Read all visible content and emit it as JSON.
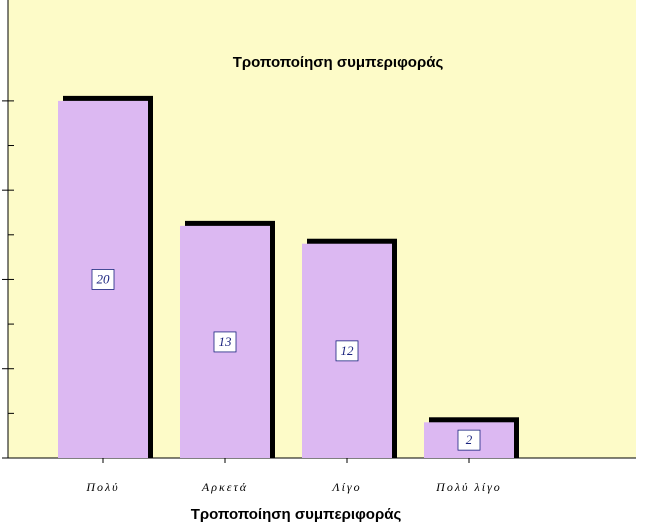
{
  "chart_data": {
    "type": "bar",
    "title": "Τροποποίηση συμπεριφοράς",
    "x_label": "Τροποποίηση συμπεριφοράς",
    "categories": [
      "Πολύ",
      "Αρκετά",
      "Λίγο",
      "Πολύ λίγο"
    ],
    "values": [
      20,
      13,
      12,
      2
    ],
    "color": "#dcb8f2",
    "ylim": [
      0,
      25.65
    ],
    "yticks": [
      0,
      2.5,
      5,
      7.5,
      10,
      12.5,
      15,
      17.5,
      20
    ],
    "grid": false
  }
}
